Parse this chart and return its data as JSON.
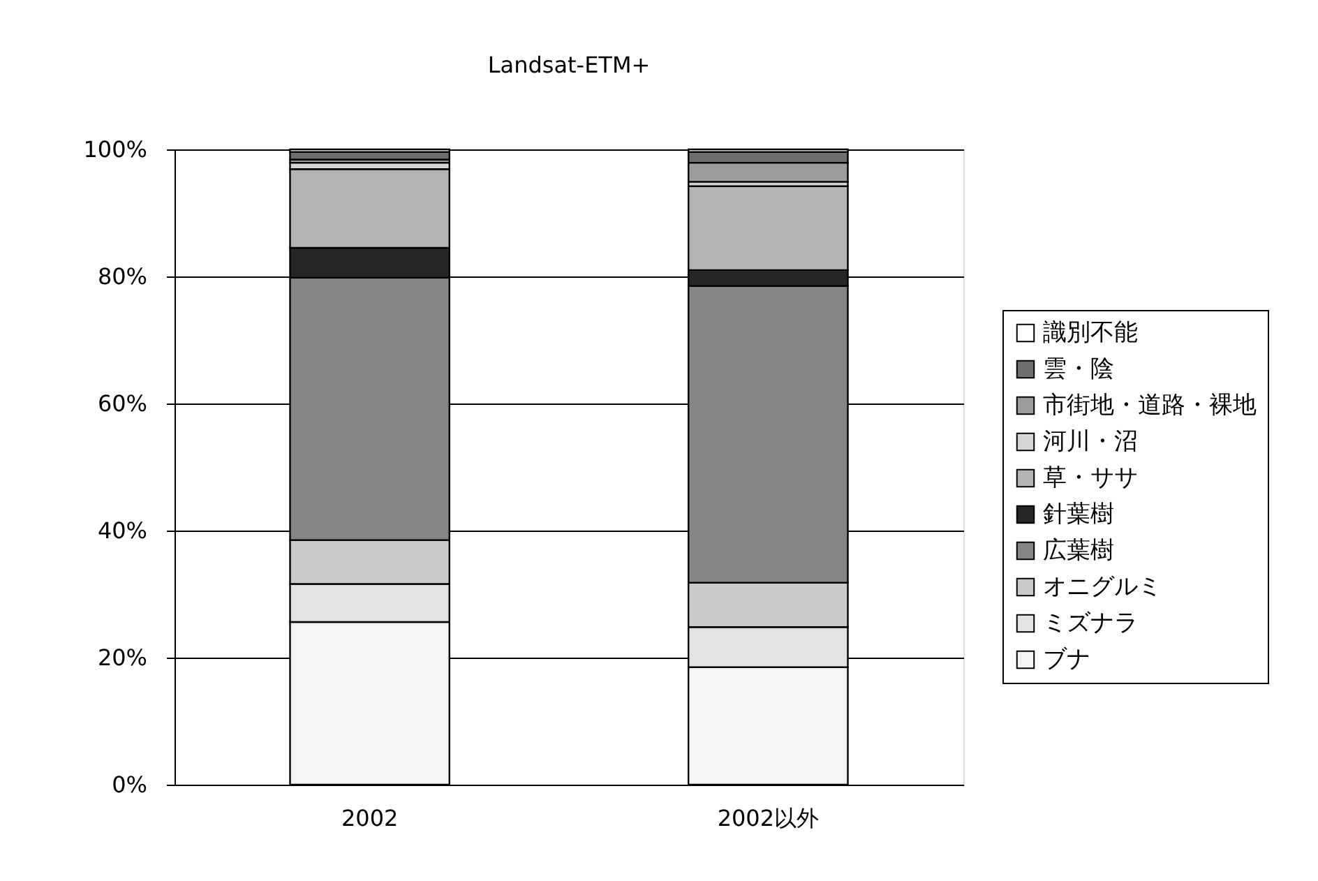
{
  "chart_data": {
    "type": "bar",
    "title": "Landsat-ETM+",
    "categories": [
      "2002",
      "2002以外"
    ],
    "stacked": true,
    "series": [
      {
        "name": "ブナ",
        "color": "#f4f4f4",
        "values": [
          25.6,
          18.5
        ]
      },
      {
        "name": "ミズナラ",
        "color": "#e2e2e2",
        "values": [
          6.0,
          6.3
        ]
      },
      {
        "name": "オニグルミ",
        "color": "#cacaca",
        "values": [
          6.9,
          7.0
        ]
      },
      {
        "name": "広葉樹",
        "color": "#858585",
        "values": [
          41.3,
          46.7
        ]
      },
      {
        "name": "針葉樹",
        "color": "#262626",
        "values": [
          4.7,
          2.5
        ]
      },
      {
        "name": "草・ササ",
        "color": "#b4b4b4",
        "values": [
          12.4,
          13.2
        ]
      },
      {
        "name": "河川・沼",
        "color": "#d6d6d6",
        "values": [
          1.0,
          0.7
        ]
      },
      {
        "name": "市街地・道路・裸地",
        "color": "#9c9c9c",
        "values": [
          0.5,
          3.0
        ]
      },
      {
        "name": "雲・陰",
        "color": "#6e6e6e",
        "values": [
          1.2,
          1.7
        ]
      },
      {
        "name": "識別不能",
        "color": "#ffffff",
        "values": [
          0.4,
          0.4
        ]
      }
    ],
    "ylim": [
      0,
      100
    ],
    "yticks": [
      {
        "value": 0,
        "label": "0%"
      },
      {
        "value": 20,
        "label": "20%"
      },
      {
        "value": 40,
        "label": "40%"
      },
      {
        "value": 60,
        "label": "60%"
      },
      {
        "value": 80,
        "label": "80%"
      },
      {
        "value": 100,
        "label": "100%"
      }
    ],
    "grid": "y",
    "legend": "right"
  }
}
